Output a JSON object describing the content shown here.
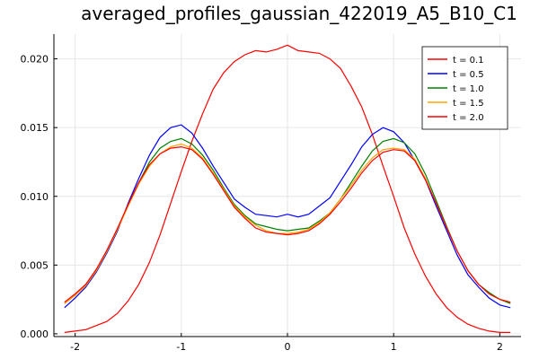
{
  "chart_data": {
    "type": "line",
    "title": "averaged_profiles_gaussian_422019_A5_B10_C1",
    "xlabel": "",
    "ylabel": "",
    "xlim": [
      -2.2,
      2.2
    ],
    "ylim": [
      -0.0002,
      0.0218
    ],
    "xticks": [
      -2,
      -1,
      0,
      1,
      2
    ],
    "xtick_labels": [
      "-2",
      "-1",
      "0",
      "1",
      "2"
    ],
    "yticks": [
      0.0,
      0.005,
      0.01,
      0.015,
      0.02
    ],
    "ytick_labels": [
      "0.000",
      "0.005",
      "0.010",
      "0.015",
      "0.020"
    ],
    "grid": true,
    "legend_position": "top-right",
    "x": [
      -2.1,
      -2.0,
      -1.9,
      -1.8,
      -1.7,
      -1.6,
      -1.5,
      -1.4,
      -1.3,
      -1.2,
      -1.1,
      -1.0,
      -0.9,
      -0.8,
      -0.7,
      -0.6,
      -0.5,
      -0.4,
      -0.3,
      -0.2,
      -0.1,
      0.0,
      0.1,
      0.2,
      0.3,
      0.4,
      0.5,
      0.6,
      0.7,
      0.8,
      0.9,
      1.0,
      1.1,
      1.2,
      1.3,
      1.4,
      1.5,
      1.6,
      1.7,
      1.8,
      1.9,
      2.0,
      2.1
    ],
    "series": [
      {
        "name": "t = 0.1",
        "color": "#ff0000",
        "values": [
          0.0001,
          0.0002,
          0.0003,
          0.0006,
          0.0009,
          0.0015,
          0.0024,
          0.0036,
          0.0052,
          0.0072,
          0.0095,
          0.0118,
          0.014,
          0.016,
          0.0178,
          0.019,
          0.0198,
          0.0203,
          0.0206,
          0.0205,
          0.0207,
          0.021,
          0.0206,
          0.0205,
          0.0204,
          0.02,
          0.0193,
          0.018,
          0.0165,
          0.0145,
          0.0122,
          0.01,
          0.0077,
          0.0058,
          0.0042,
          0.0029,
          0.0019,
          0.0012,
          0.0007,
          0.0004,
          0.0002,
          0.0001,
          0.0001
        ]
      },
      {
        "name": "t = 0.5",
        "color": "#0000ff",
        "values": [
          0.0019,
          0.0026,
          0.0034,
          0.0045,
          0.0059,
          0.0075,
          0.0095,
          0.0113,
          0.013,
          0.0143,
          0.015,
          0.0152,
          0.0146,
          0.0135,
          0.0122,
          0.011,
          0.0098,
          0.0092,
          0.0087,
          0.0086,
          0.0085,
          0.0087,
          0.0085,
          0.0087,
          0.0093,
          0.0099,
          0.0111,
          0.0123,
          0.0136,
          0.0145,
          0.015,
          0.0147,
          0.0139,
          0.0126,
          0.0112,
          0.0093,
          0.0075,
          0.0057,
          0.0043,
          0.0034,
          0.0026,
          0.0021,
          0.0019
        ]
      },
      {
        "name": "t = 1.0",
        "color": "#008000",
        "values": [
          0.0022,
          0.0028,
          0.0036,
          0.0046,
          0.006,
          0.0076,
          0.0094,
          0.011,
          0.0125,
          0.0135,
          0.014,
          0.0142,
          0.0138,
          0.013,
          0.0119,
          0.0106,
          0.0094,
          0.0086,
          0.008,
          0.0078,
          0.0076,
          0.0075,
          0.0076,
          0.0077,
          0.0082,
          0.0088,
          0.0098,
          0.011,
          0.0122,
          0.0133,
          0.014,
          0.0142,
          0.0139,
          0.0131,
          0.0116,
          0.0097,
          0.0078,
          0.006,
          0.0046,
          0.0036,
          0.003,
          0.0025,
          0.0022
        ]
      },
      {
        "name": "t = 1.5",
        "color": "#ffa500",
        "values": [
          0.0022,
          0.0028,
          0.0035,
          0.0046,
          0.006,
          0.0076,
          0.0093,
          0.0109,
          0.0122,
          0.0131,
          0.0136,
          0.0138,
          0.0135,
          0.0128,
          0.0117,
          0.0105,
          0.0093,
          0.0085,
          0.0079,
          0.0075,
          0.0073,
          0.0073,
          0.0074,
          0.0076,
          0.0081,
          0.0088,
          0.0098,
          0.0108,
          0.0119,
          0.0128,
          0.0134,
          0.0135,
          0.0134,
          0.0127,
          0.0113,
          0.0095,
          0.0077,
          0.006,
          0.0046,
          0.0036,
          0.0029,
          0.0025,
          0.0023
        ]
      },
      {
        "name": "t = 2.0",
        "color": "#ff0000",
        "values": [
          0.0023,
          0.0029,
          0.0036,
          0.0047,
          0.0061,
          0.0077,
          0.0094,
          0.011,
          0.0123,
          0.0131,
          0.0135,
          0.0136,
          0.0134,
          0.0127,
          0.0116,
          0.0104,
          0.0092,
          0.0084,
          0.0077,
          0.0074,
          0.0073,
          0.0072,
          0.0073,
          0.0075,
          0.008,
          0.0087,
          0.0096,
          0.0106,
          0.0117,
          0.0126,
          0.0132,
          0.0134,
          0.0133,
          0.0126,
          0.0112,
          0.0095,
          0.0077,
          0.006,
          0.0046,
          0.0036,
          0.0029,
          0.0025,
          0.0023
        ]
      }
    ]
  }
}
